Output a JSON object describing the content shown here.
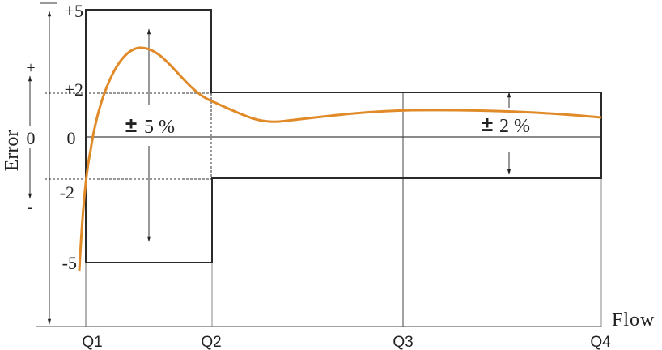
{
  "chart_data": {
    "type": "line",
    "xlabel": "Flow",
    "ylabel": "Error",
    "x_ticks": [
      "Q1",
      "Q2",
      "Q3",
      "Q4"
    ],
    "y_ticks": [
      "+5",
      "+2",
      "0",
      "-2",
      "-5"
    ],
    "sign_axis": {
      "plus": "+",
      "zero": "0",
      "minus": "-"
    },
    "bands": [
      {
        "from": "Q1",
        "to": "Q2",
        "upper": 5,
        "lower": -5,
        "label_sign": "±",
        "label_value": "5 %"
      },
      {
        "from": "Q2",
        "to": "Q4",
        "upper": 2,
        "lower": -2,
        "label_sign": "±",
        "label_value": "2 %"
      }
    ],
    "curve_color": "#e08a28",
    "frame_color": "#2a2a2a"
  }
}
